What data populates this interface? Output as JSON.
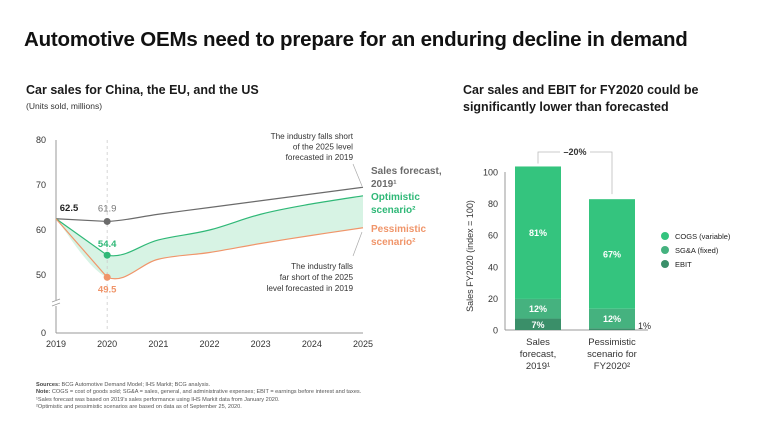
{
  "header": {
    "title": "Automotive OEMs need to prepare for an enduring decline in demand"
  },
  "left_panel": {
    "title": "Car sales for China, the EU, and the US",
    "unit": "(Units sold, millions)"
  },
  "right_panel": {
    "title_line1": "Car sales and EBIT for FY2020 could be",
    "title_line2": "significantly lower than forecasted"
  },
  "colors": {
    "forecast": "#6b6b6b",
    "optimistic": "#2fb877",
    "pessimistic": "#f0956a",
    "band_fill": "#d7f3e4",
    "cogs": "#34c47e",
    "sga": "#45b27f",
    "ebit": "#3a8f69"
  },
  "chart_data": [
    {
      "type": "line",
      "title": "Car sales for China, the EU, and the US",
      "ylabel": "(Units sold, millions)",
      "x": [
        2019,
        2020,
        2021,
        2022,
        2023,
        2024,
        2025
      ],
      "x_tick_labels": [
        "2019",
        "2020",
        "2021",
        "2022",
        "2023",
        "2024",
        "2025"
      ],
      "y_tick_labels": [
        "80",
        "70",
        "60",
        "50",
        "0"
      ],
      "y_ticks": [
        80,
        70,
        60,
        50,
        0
      ],
      "ylim": [
        0,
        80
      ],
      "axis_break": "between 0 and 50",
      "grid": false,
      "series": [
        {
          "name": "Sales forecast, 2019¹",
          "label_line1": "Sales forecast,",
          "label_line2": "2019¹",
          "values": [
            62.5,
            61.9,
            63.5,
            65.0,
            66.5,
            68.0,
            69.5
          ]
        },
        {
          "name": "Optimistic scenario²",
          "label_line1": "Optimistic",
          "label_line2": "scenario²",
          "values": [
            62.5,
            54.4,
            57.8,
            60.0,
            63.5,
            65.8,
            67.6
          ]
        },
        {
          "name": "Pessimistic scenario²",
          "label_line1": "Pessimistic",
          "label_line2": "scenario²",
          "values": [
            62.5,
            49.5,
            53.5,
            55.0,
            57.0,
            58.8,
            60.5
          ]
        }
      ],
      "data_labels": {
        "start": "62.5",
        "forecast_2020": "61.9",
        "optimistic_2020": "54.4",
        "pessimistic_2020": "49.5"
      },
      "annotations": {
        "top": [
          "The industry falls short",
          "of the 2025 level",
          "forecasted in 2019"
        ],
        "bottom": [
          "The industry falls",
          "far short of the 2025",
          "level forecasted in 2019"
        ]
      },
      "legend": "right-of-lines"
    },
    {
      "type": "bar",
      "stacked": true,
      "ylabel": "Sales FY2020 (index = 100)",
      "y_ticks": [
        0,
        20,
        40,
        60,
        80,
        100
      ],
      "y_tick_labels": [
        "0",
        "20",
        "40",
        "60",
        "80",
        "100"
      ],
      "ylim": [
        0,
        100
      ],
      "categories": [
        [
          "Sales",
          "forecast,",
          "2019¹"
        ],
        [
          "Pessimistic",
          "scenario for",
          "FY2020²"
        ]
      ],
      "totals": [
        100,
        80
      ],
      "series": [
        {
          "name": "EBIT",
          "values": [
            7,
            1
          ],
          "labels": [
            "7%",
            "1%"
          ]
        },
        {
          "name": "SG&A (fixed)",
          "values": [
            12,
            12
          ],
          "labels": [
            "12%",
            "12%"
          ]
        },
        {
          "name": "COGS (variable)",
          "values": [
            81,
            67
          ],
          "labels": [
            "81%",
            "67%"
          ]
        }
      ],
      "difference_label": "–20%",
      "legend": [
        "COGS (variable)",
        "SG&A (fixed)",
        "EBIT"
      ],
      "legend_placement": "right"
    }
  ],
  "footer": {
    "sources_label": "Sources:",
    "sources": " BCG Automotive Demand Model; IHS Markit; BCG analysis.",
    "note_label": "Note:",
    "note": " COGS = cost of goods sold; SG&A = sales, general, and administrative expenses; EBIT = earnings before interest and taxes.",
    "footnote1": "¹Sales forecast was based on 2019's sales performance using IHS Markit data from January 2020.",
    "footnote2": "²Optimistic and pessimistic scenarios are based on data as of September 25, 2020."
  }
}
